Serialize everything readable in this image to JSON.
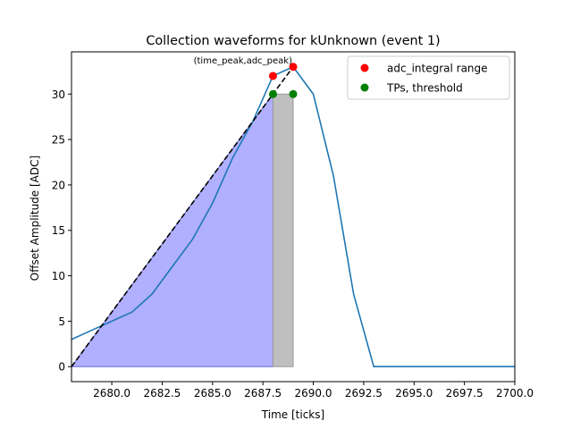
{
  "chart_data": {
    "type": "line",
    "title": "Collection waveforms for kUnknown (event 1)",
    "xlabel": "Time [ticks]",
    "ylabel": "Offset Amplitude [ADC]",
    "xlim": [
      2678,
      2700
    ],
    "ylim": [
      -1.65,
      34.65
    ],
    "xticks": [
      2680,
      2682.5,
      2685,
      2687.5,
      2690,
      2692.5,
      2695,
      2697.5,
      2700
    ],
    "xtick_labels": [
      "2680.0",
      "2682.5",
      "2685.0",
      "2687.5",
      "2690.0",
      "2692.5",
      "2695.0",
      "2697.5",
      "2700.0"
    ],
    "yticks": [
      0,
      5,
      10,
      15,
      20,
      25,
      30
    ],
    "ytick_labels": [
      "0",
      "5",
      "10",
      "15",
      "20",
      "25",
      "30"
    ],
    "grid": false,
    "waveform": {
      "color": "#1f77b4",
      "x": [
        2678,
        2679,
        2680,
        2681,
        2682,
        2683,
        2684,
        2685,
        2686,
        2687,
        2688,
        2689,
        2690,
        2691,
        2692,
        2693,
        2694,
        2695,
        2696,
        2697,
        2698,
        2699,
        2700
      ],
      "y": [
        3,
        4,
        5,
        6,
        8,
        11,
        14,
        18,
        23,
        27,
        32,
        33,
        30,
        21,
        8,
        0,
        0,
        0,
        0,
        0,
        0,
        0,
        0
      ]
    },
    "integral_area": {
      "color": "#b0b0ff",
      "x_start": 2678,
      "x_end": 2688
    },
    "tail_area": {
      "color": "#bfbfbf",
      "x_start": 2688,
      "x_end": 2689,
      "y_top": 30
    },
    "dashed_line": {
      "color": "#000000",
      "x": [
        2678,
        2689
      ],
      "y": [
        0,
        33
      ]
    },
    "annotation": {
      "text": "(time_peak,adc_peak)",
      "x": 2689,
      "y": 33
    },
    "series": [
      {
        "name": "adc_integral range",
        "color": "#ff0000",
        "marker": "circle",
        "x": [
          2688,
          2689
        ],
        "y": [
          32,
          33
        ]
      },
      {
        "name": "TPs, threshold",
        "color": "#008000",
        "marker": "circle",
        "x": [
          2688,
          2689
        ],
        "y": [
          30,
          30
        ]
      }
    ],
    "legend_position": "top-right"
  }
}
